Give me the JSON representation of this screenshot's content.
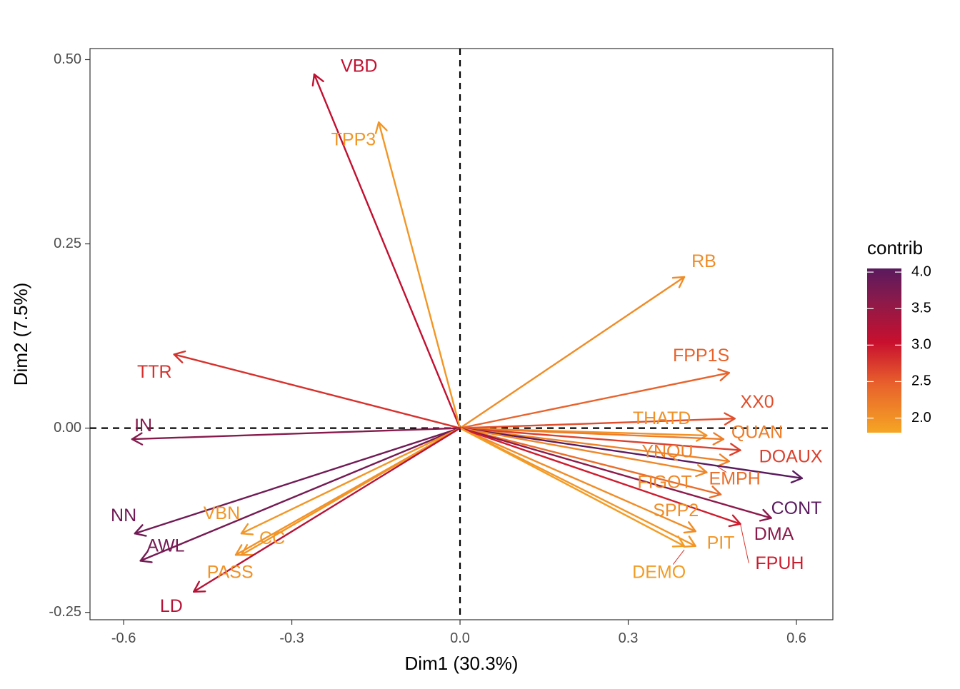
{
  "chart_data": {
    "type": "scatter",
    "subtype": "pca-variable-biplot",
    "title": "",
    "xlabel": "Dim1 (30.3%)",
    "ylabel": "Dim2 (7.5%)",
    "xlim": [
      -0.66,
      0.665
    ],
    "ylim": [
      -0.26,
      0.515
    ],
    "xticks": [
      -0.6,
      -0.3,
      0.0,
      0.3,
      0.6
    ],
    "xtick_labels": [
      "-0.6",
      "-0.3",
      "0.0",
      "0.3",
      "0.6"
    ],
    "yticks": [
      -0.25,
      0.0,
      0.25,
      0.5
    ],
    "ytick_labels": [
      "-0.25",
      "0.00",
      "0.25",
      "0.50"
    ],
    "grid": false,
    "reference_lines": {
      "x": 0,
      "y": 0,
      "style": "dashed"
    },
    "legend": {
      "title": "contrib",
      "placement": "right",
      "min": 1.8,
      "max": 4.05,
      "ticks": [
        2.0,
        2.5,
        3.0,
        3.5,
        4.0
      ],
      "tick_labels": [
        "2.0",
        "2.5",
        "3.0",
        "3.5",
        "4.0"
      ],
      "colors": [
        "#f5a623",
        "#e8602c",
        "#c8102e",
        "#8b1a4a",
        "#5a1a5e"
      ]
    },
    "variables": [
      {
        "name": "VBD",
        "x": -0.26,
        "y": 0.48,
        "contrib": 3.1,
        "label_x": -0.18,
        "label_y": 0.49
      },
      {
        "name": "TPP3",
        "x": -0.145,
        "y": 0.415,
        "contrib": 1.95,
        "label_x": -0.19,
        "label_y": 0.39
      },
      {
        "name": "RB",
        "x": 0.4,
        "y": 0.205,
        "contrib": 2.05,
        "label_x": 0.435,
        "label_y": 0.225
      },
      {
        "name": "TTR",
        "x": -0.51,
        "y": 0.1,
        "contrib": 2.8,
        "label_x": -0.545,
        "label_y": 0.075
      },
      {
        "name": "FPP1S",
        "x": 0.48,
        "y": 0.075,
        "contrib": 2.45,
        "label_x": 0.43,
        "label_y": 0.097
      },
      {
        "name": "XX0",
        "x": 0.49,
        "y": 0.013,
        "contrib": 2.6,
        "label_x": 0.53,
        "label_y": 0.034
      },
      {
        "name": "THATD",
        "x": 0.44,
        "y": -0.01,
        "contrib": 2.0,
        "label_x": 0.36,
        "label_y": 0.012
      },
      {
        "name": "IN",
        "x": -0.585,
        "y": -0.015,
        "contrib": 3.65,
        "label_x": -0.565,
        "label_y": 0.002
      },
      {
        "name": "QUAN",
        "x": 0.47,
        "y": -0.015,
        "contrib": 2.2,
        "label_x": 0.53,
        "label_y": -0.007
      },
      {
        "name": "YNQU",
        "x": 0.48,
        "y": -0.045,
        "contrib": 2.15,
        "label_x": 0.37,
        "label_y": -0.033
      },
      {
        "name": "DOAUX",
        "x": 0.5,
        "y": -0.03,
        "contrib": 2.7,
        "label_x": 0.59,
        "label_y": -0.04
      },
      {
        "name": "CONT",
        "x": 0.61,
        "y": -0.068,
        "contrib": 4.05,
        "label_x": 0.6,
        "label_y": -0.11
      },
      {
        "name": "FIGOT",
        "x": 0.44,
        "y": -0.06,
        "contrib": 2.1,
        "label_x": 0.365,
        "label_y": -0.075
      },
      {
        "name": "EMPH",
        "x": 0.465,
        "y": -0.09,
        "contrib": 2.35,
        "label_x": 0.49,
        "label_y": -0.07
      },
      {
        "name": "DMA",
        "x": 0.555,
        "y": -0.122,
        "contrib": 3.6,
        "label_x": 0.56,
        "label_y": -0.145
      },
      {
        "name": "SPP2",
        "x": 0.42,
        "y": -0.14,
        "contrib": 2.05,
        "label_x": 0.385,
        "label_y": -0.113
      },
      {
        "name": "FPUH",
        "x": 0.5,
        "y": -0.13,
        "contrib": 2.95,
        "label_x": 0.57,
        "label_y": -0.185
      },
      {
        "name": "PIT",
        "x": 0.42,
        "y": -0.16,
        "contrib": 1.95,
        "label_x": 0.465,
        "label_y": -0.157
      },
      {
        "name": "DEMO",
        "x": 0.4,
        "y": -0.16,
        "contrib": 1.9,
        "label_x": 0.355,
        "label_y": -0.197
      },
      {
        "name": "NN",
        "x": -0.58,
        "y": -0.143,
        "contrib": 3.85,
        "label_x": -0.6,
        "label_y": -0.12
      },
      {
        "name": "AWL",
        "x": -0.57,
        "y": -0.18,
        "contrib": 3.8,
        "label_x": -0.525,
        "label_y": -0.161
      },
      {
        "name": "VBN",
        "x": -0.39,
        "y": -0.143,
        "contrib": 1.95,
        "label_x": -0.425,
        "label_y": -0.117
      },
      {
        "name": "CC",
        "x": -0.39,
        "y": -0.172,
        "contrib": 1.95,
        "label_x": -0.335,
        "label_y": -0.151
      },
      {
        "name": "PASS",
        "x": -0.4,
        "y": -0.172,
        "contrib": 2.0,
        "label_x": -0.41,
        "label_y": -0.197
      },
      {
        "name": "LD",
        "x": -0.475,
        "y": -0.222,
        "contrib": 3.2,
        "label_x": -0.515,
        "label_y": -0.243
      }
    ],
    "leader_lines": [
      {
        "from": [
          0.5,
          -0.13
        ],
        "to": [
          0.515,
          -0.183
        ]
      },
      {
        "from": [
          0.475,
          -0.06
        ],
        "to": [
          0.455,
          -0.05
        ]
      },
      {
        "from": [
          0.4,
          -0.165
        ],
        "to": [
          0.38,
          -0.185
        ]
      }
    ]
  }
}
